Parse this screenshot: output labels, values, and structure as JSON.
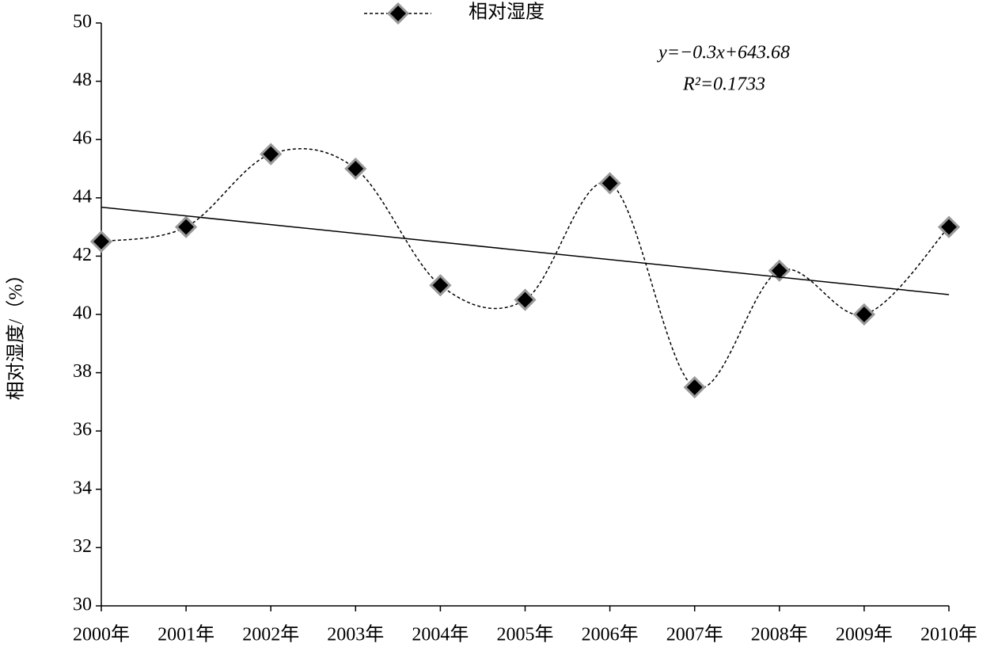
{
  "chart_data": {
    "type": "line",
    "y_label": "相对湿度/（%）",
    "x": [
      2000,
      2001,
      2002,
      2003,
      2004,
      2005,
      2006,
      2007,
      2008,
      2009,
      2010
    ],
    "series": [
      {
        "name": "相对湿度",
        "color": "#000000",
        "values": [
          42.5,
          43.0,
          45.5,
          45.0,
          41.0,
          40.5,
          44.5,
          37.5,
          41.5,
          40.0,
          43.0
        ]
      }
    ],
    "trendline": {
      "slope": -0.3,
      "intercept": 643.68,
      "equation": "y=−0.3x+643.68",
      "r_squared": "R²=0.1733"
    },
    "xlim": [
      2000,
      2010
    ],
    "xticks": [
      {
        "value": 2000,
        "label": "2000年"
      },
      {
        "value": 2001,
        "label": "2001年"
      },
      {
        "value": 2002,
        "label": "2002年"
      },
      {
        "value": 2003,
        "label": "2003年"
      },
      {
        "value": 2004,
        "label": "2004年"
      },
      {
        "value": 2005,
        "label": "2005年"
      },
      {
        "value": 2006,
        "label": "2006年"
      },
      {
        "value": 2007,
        "label": "2007年"
      },
      {
        "value": 2008,
        "label": "2008年"
      },
      {
        "value": 2009,
        "label": "2009年"
      },
      {
        "value": 2010,
        "label": "2010年"
      }
    ],
    "ylim": [
      30,
      50
    ],
    "yticks": [
      30,
      32,
      34,
      36,
      38,
      40,
      42,
      44,
      46,
      48,
      50
    ],
    "legend": "top"
  }
}
